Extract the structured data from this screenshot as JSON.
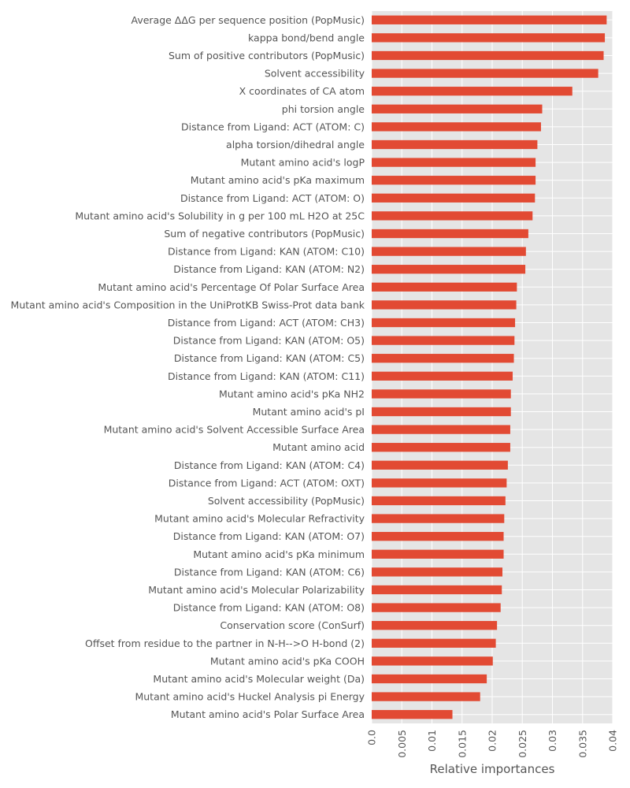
{
  "chart_data": {
    "type": "bar",
    "orientation": "horizontal",
    "title": "",
    "xlabel": "Relative importances",
    "ylabel": "",
    "xlim": [
      0,
      0.04
    ],
    "x_ticks": [
      "0.0",
      "0.005",
      "0.01",
      "0.015",
      "0.02",
      "0.025",
      "0.03",
      "0.035",
      "0.04"
    ],
    "grid": true,
    "legend": false,
    "bar_color": "#E24A33",
    "background_color": "#E5E5E5",
    "grid_color": "#FFFFFF",
    "categories": [
      "Average ΔΔG per sequence position (PopMusic)",
      "kappa bond/bend angle",
      "Sum of positive contributors (PopMusic)",
      "Solvent accessibility",
      "X coordinates of CA atom",
      "phi torsion angle",
      "Distance from Ligand: ACT (ATOM: C)",
      "alpha torsion/dihedral angle",
      "Mutant amino acid's logP",
      "Mutant amino acid's pKa maximum",
      "Distance from Ligand: ACT (ATOM: O)",
      "Mutant amino acid's Solubility in g per 100 mL H2O at 25C",
      "Sum of negative contributors (PopMusic)",
      "Distance from Ligand: KAN (ATOM: C10)",
      "Distance from Ligand: KAN (ATOM: N2)",
      "Mutant amino acid's Percentage Of Polar Surface Area",
      "Mutant amino acid's Composition in the UniProtKB Swiss-Prot data bank",
      "Distance from Ligand: ACT (ATOM: CH3)",
      "Distance from Ligand: KAN (ATOM: O5)",
      "Distance from Ligand: KAN (ATOM: C5)",
      "Distance from Ligand: KAN (ATOM: C11)",
      "Mutant amino acid's pKa NH2",
      "Mutant amino acid's pI",
      "Mutant amino acid's Solvent Accessible Surface Area",
      "Mutant amino acid",
      "Distance from Ligand: KAN (ATOM: C4)",
      "Distance from Ligand: ACT (ATOM: OXT)",
      "Solvent accessibility (PopMusic)",
      "Mutant amino acid's Molecular Refractivity",
      "Distance from Ligand: KAN (ATOM: O7)",
      "Mutant amino acid's pKa minimum",
      "Distance from Ligand: KAN (ATOM: C6)",
      "Mutant amino acid's Molecular Polarizability",
      "Distance from Ligand: KAN (ATOM: O8)",
      "Conservation score (ConSurf)",
      "Offset from residue to the partner in N-H-->O H-bond (2)",
      "Mutant amino acid's pKa COOH",
      "Mutant amino acid's Molecular weight (Da)",
      "Mutant amino acid's Huckel Analysis pi Energy",
      "Mutant amino acid's Polar Surface Area"
    ],
    "values": [
      0.039,
      0.0387,
      0.0385,
      0.0376,
      0.0333,
      0.0283,
      0.0281,
      0.0275,
      0.0272,
      0.0272,
      0.0271,
      0.0267,
      0.026,
      0.0256,
      0.0255,
      0.0241,
      0.024,
      0.0238,
      0.0237,
      0.0236,
      0.0234,
      0.0231,
      0.0231,
      0.023,
      0.023,
      0.0226,
      0.0224,
      0.0222,
      0.022,
      0.0219,
      0.0219,
      0.0217,
      0.0216,
      0.0214,
      0.0208,
      0.0206,
      0.0201,
      0.0191,
      0.018,
      0.0134
    ]
  }
}
